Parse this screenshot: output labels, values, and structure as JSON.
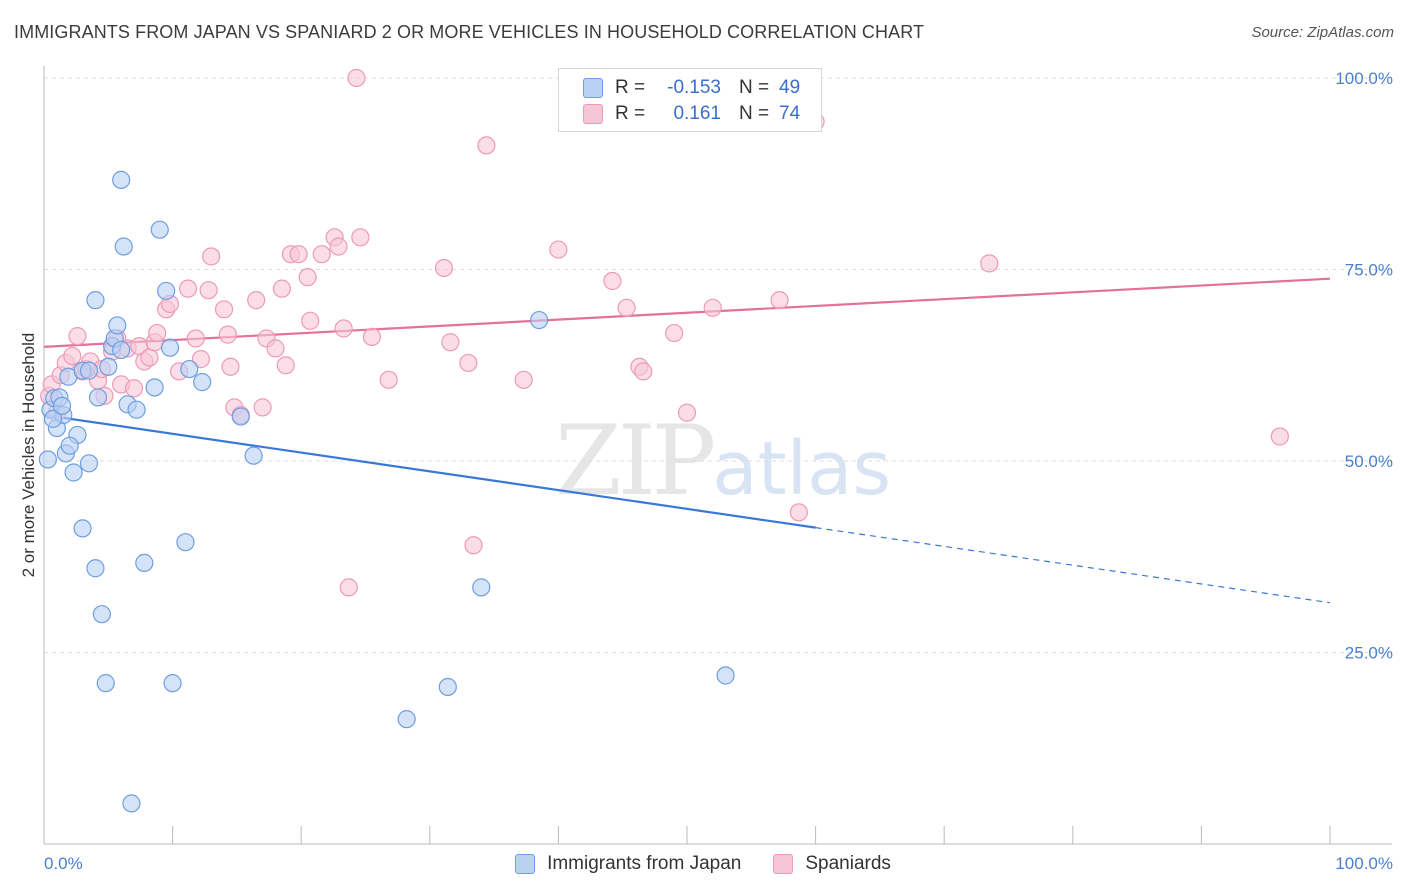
{
  "title": "IMMIGRANTS FROM JAPAN VS SPANIARD 2 OR MORE VEHICLES IN HOUSEHOLD CORRELATION CHART",
  "source": "Source: ZipAtlas.com",
  "watermark": {
    "zip": "ZIP",
    "atlas": "atlas"
  },
  "legend": {
    "rows": [
      {
        "r_label": "R =",
        "r_value": "-0.153",
        "n_label": "N =",
        "n_value": "49"
      },
      {
        "r_label": "R =",
        "r_value": "0.161",
        "n_label": "N =",
        "n_value": "74"
      }
    ]
  },
  "bottom_legend": {
    "japan": "Immigrants from Japan",
    "spaniards": "Spaniards"
  },
  "colors": {
    "japan_fill": "#b9d1f3",
    "japan_stroke": "#6f9ee0",
    "japan_line": "#3a78d8",
    "spaniard_fill": "#f7c6d6",
    "spaniard_stroke": "#ee9ab6",
    "spaniard_line": "#e4719a",
    "tick_text": "#4a7fd0",
    "grid": "#dddddd"
  },
  "chart_data": {
    "type": "scatter",
    "title": "IMMIGRANTS FROM JAPAN VS SPANIARD 2 OR MORE VEHICLES IN HOUSEHOLD CORRELATION CHART",
    "xlabel": "",
    "ylabel": "2 or more Vehicles in Household",
    "xlim": [
      0,
      100
    ],
    "ylim": [
      0,
      100
    ],
    "x_tick_labels": [
      "0.0%",
      "100.0%"
    ],
    "y_ticks": [
      25,
      50,
      75,
      100
    ],
    "y_tick_labels": [
      "25.0%",
      "50.0%",
      "75.0%",
      "100.0%"
    ],
    "grid": "horizontal dashed",
    "series": [
      {
        "name": "Immigrants from Japan",
        "r": -0.153,
        "n": 49,
        "trend": {
          "x0": 0,
          "y0": 56.0,
          "x1": 60,
          "y1": 41.3,
          "dashed_to_x": 100,
          "dashed_to_y": 31.5
        },
        "points": [
          [
            0.3,
            50.2
          ],
          [
            0.5,
            56.7
          ],
          [
            0.8,
            58.2
          ],
          [
            1.0,
            54.3
          ],
          [
            1.2,
            58.3
          ],
          [
            1.5,
            56.0
          ],
          [
            1.7,
            51.0
          ],
          [
            1.9,
            61.0
          ],
          [
            2.3,
            48.5
          ],
          [
            2.6,
            53.4
          ],
          [
            3.0,
            41.2
          ],
          [
            3.0,
            61.8
          ],
          [
            3.5,
            49.7
          ],
          [
            3.5,
            61.8
          ],
          [
            4.0,
            71.0
          ],
          [
            4.0,
            36.0
          ],
          [
            4.2,
            58.3
          ],
          [
            4.5,
            30.0
          ],
          [
            4.8,
            21.0
          ],
          [
            5.0,
            62.3
          ],
          [
            5.3,
            65.0
          ],
          [
            5.5,
            66.0
          ],
          [
            5.7,
            67.7
          ],
          [
            6.0,
            86.7
          ],
          [
            6.2,
            78.0
          ],
          [
            6.5,
            57.4
          ],
          [
            6.8,
            5.3
          ],
          [
            7.2,
            56.7
          ],
          [
            7.8,
            36.7
          ],
          [
            8.6,
            59.6
          ],
          [
            9.0,
            80.2
          ],
          [
            9.5,
            72.2
          ],
          [
            9.8,
            64.8
          ],
          [
            10.0,
            21.0
          ],
          [
            11.0,
            39.4
          ],
          [
            11.3,
            62.0
          ],
          [
            12.3,
            60.3
          ],
          [
            15.3,
            55.8
          ],
          [
            16.3,
            50.7
          ],
          [
            28.2,
            16.3
          ],
          [
            31.4,
            20.5
          ],
          [
            34.0,
            33.5
          ],
          [
            38.5,
            68.4
          ],
          [
            45.5,
            100.0
          ],
          [
            53.0,
            22.0
          ],
          [
            0.7,
            55.5
          ],
          [
            1.4,
            57.2
          ],
          [
            2.0,
            52.0
          ],
          [
            6.0,
            64.5
          ]
        ]
      },
      {
        "name": "Spaniards",
        "r": 0.161,
        "n": 74,
        "trend": {
          "x0": 0,
          "y0": 64.9,
          "x1": 100,
          "y1": 73.8
        },
        "points": [
          [
            0.4,
            58.5
          ],
          [
            0.6,
            60.0
          ],
          [
            1.0,
            56.3
          ],
          [
            1.3,
            61.2
          ],
          [
            1.7,
            62.8
          ],
          [
            2.2,
            63.7
          ],
          [
            2.6,
            66.3
          ],
          [
            3.0,
            61.7
          ],
          [
            3.3,
            62.0
          ],
          [
            3.6,
            63.0
          ],
          [
            4.2,
            60.5
          ],
          [
            4.5,
            62.0
          ],
          [
            4.7,
            58.5
          ],
          [
            5.3,
            64.3
          ],
          [
            5.7,
            66.0
          ],
          [
            6.0,
            60.0
          ],
          [
            6.5,
            64.7
          ],
          [
            7.0,
            59.5
          ],
          [
            7.4,
            65.0
          ],
          [
            7.8,
            63.0
          ],
          [
            8.2,
            63.5
          ],
          [
            8.6,
            65.5
          ],
          [
            8.8,
            66.7
          ],
          [
            9.5,
            69.8
          ],
          [
            9.8,
            70.5
          ],
          [
            10.5,
            61.7
          ],
          [
            11.2,
            72.5
          ],
          [
            11.8,
            66.0
          ],
          [
            12.2,
            63.3
          ],
          [
            12.8,
            72.3
          ],
          [
            13.0,
            76.7
          ],
          [
            14.0,
            69.8
          ],
          [
            14.3,
            66.5
          ],
          [
            14.5,
            62.3
          ],
          [
            14.8,
            57.0
          ],
          [
            15.3,
            56.0
          ],
          [
            16.5,
            71.0
          ],
          [
            17.0,
            57.0
          ],
          [
            17.3,
            66.0
          ],
          [
            18.0,
            64.7
          ],
          [
            18.5,
            72.5
          ],
          [
            18.8,
            62.5
          ],
          [
            19.2,
            77.0
          ],
          [
            19.8,
            77.0
          ],
          [
            20.5,
            74.0
          ],
          [
            20.7,
            68.3
          ],
          [
            21.6,
            77.0
          ],
          [
            22.6,
            79.2
          ],
          [
            22.9,
            78.0
          ],
          [
            23.3,
            67.3
          ],
          [
            23.7,
            33.5
          ],
          [
            24.3,
            100.0
          ],
          [
            24.6,
            79.2
          ],
          [
            25.5,
            66.2
          ],
          [
            26.8,
            60.6
          ],
          [
            31.1,
            75.2
          ],
          [
            31.6,
            65.5
          ],
          [
            33.0,
            62.8
          ],
          [
            33.4,
            39.0
          ],
          [
            34.4,
            91.2
          ],
          [
            37.3,
            60.6
          ],
          [
            40.0,
            77.6
          ],
          [
            44.2,
            73.5
          ],
          [
            45.3,
            70.0
          ],
          [
            46.3,
            62.3
          ],
          [
            46.6,
            61.7
          ],
          [
            49.0,
            66.7
          ],
          [
            50.0,
            56.3
          ],
          [
            52.0,
            70.0
          ],
          [
            57.2,
            71.0
          ],
          [
            58.7,
            43.3
          ],
          [
            60.0,
            94.3
          ],
          [
            73.5,
            75.8
          ],
          [
            96.1,
            53.2
          ]
        ]
      }
    ]
  }
}
